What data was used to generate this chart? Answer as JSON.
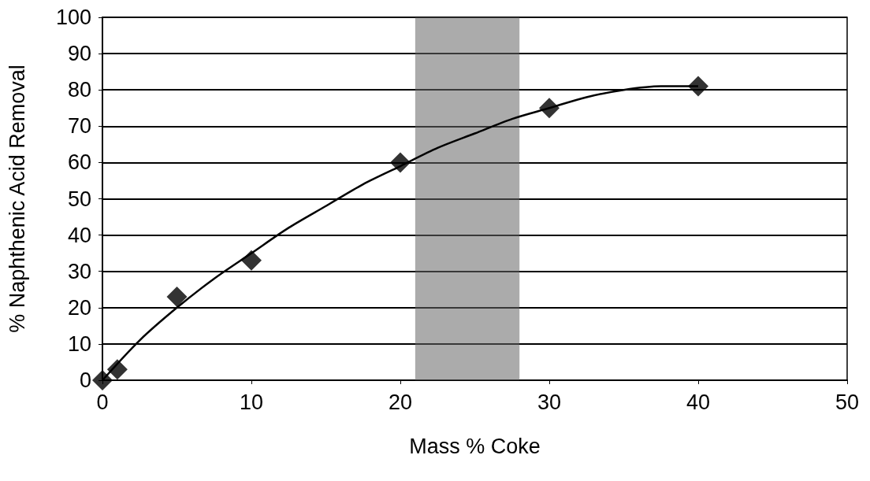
{
  "chart_data": {
    "type": "scatter",
    "xlabel": "Mass % Coke",
    "ylabel": "% Naphthenic Acid Removal",
    "series": [
      {
        "color": "#000000",
        "marker": "diamond",
        "x": [
          0,
          1,
          5,
          10,
          20,
          30,
          40
        ],
        "values": [
          0,
          3,
          23,
          33,
          60,
          75,
          81
        ]
      },
      {
        "type": "line",
        "color": "#000000",
        "marker": "none",
        "line_style": "solid",
        "x": [
          0,
          2.5,
          5,
          7.5,
          10,
          12.5,
          15,
          17.5,
          20,
          22.5,
          25,
          27.5,
          30,
          32.5,
          35,
          37.5,
          40
        ],
        "values": [
          0,
          11,
          20,
          28,
          35,
          42,
          48,
          54,
          59,
          64,
          68,
          72,
          75,
          78,
          80,
          81,
          81
        ]
      }
    ],
    "bands": [
      {
        "axis": "x",
        "from": 21,
        "to": 28,
        "color": "#666666"
      }
    ],
    "xlim": [
      0,
      50
    ],
    "xticks": [
      0,
      10,
      20,
      30,
      40,
      50
    ],
    "ylim": [
      0,
      100
    ],
    "yticks": [
      0,
      10,
      20,
      30,
      40,
      50,
      60,
      70,
      80,
      90,
      100
    ],
    "grid": "y"
  }
}
